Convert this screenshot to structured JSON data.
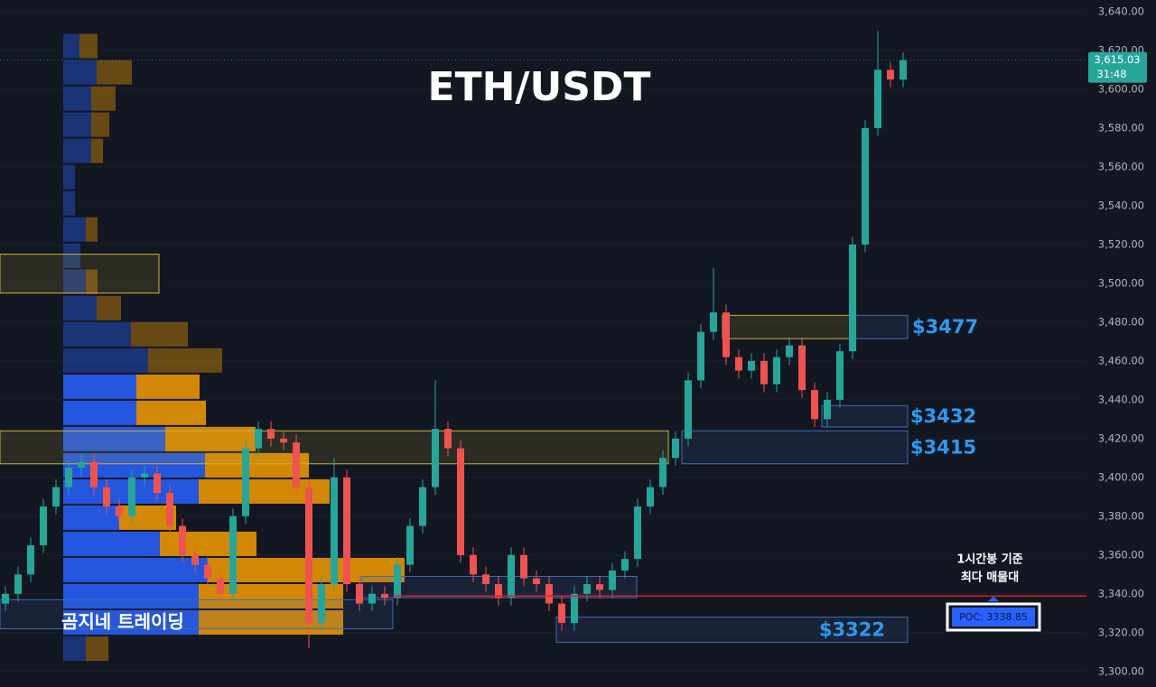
{
  "chart_data": {
    "type": "candlestick",
    "title": "ETH/USDT",
    "watermark": "곰지네 트레이딩",
    "open": [
      3335,
      3340,
      3350,
      3365,
      3385,
      3395,
      3405,
      3408,
      3395,
      3385,
      3380,
      3400,
      3402,
      3392,
      3375,
      3360,
      3355,
      3348,
      3340,
      3380,
      3415,
      3425,
      3420,
      3418,
      3395,
      3325,
      3345,
      3400,
      3345,
      3335,
      3340,
      3338,
      3355,
      3375,
      3395,
      3425,
      3415,
      3360,
      3350,
      3345,
      3338,
      3360,
      3348,
      3345,
      3335,
      3325,
      3340,
      3345,
      3342,
      3352,
      3358,
      3385,
      3395,
      3410,
      3420,
      3450,
      3475,
      3485,
      3462,
      3455,
      3460,
      3448,
      3462,
      3468,
      3445,
      3430,
      3440,
      3465,
      3520,
      3580,
      3610,
      3605
    ],
    "high": [
      3344,
      3354,
      3369,
      3389,
      3399,
      3409,
      3412,
      3412,
      3399,
      3389,
      3404,
      3406,
      3406,
      3396,
      3379,
      3364,
      3359,
      3352,
      3384,
      3419,
      3429,
      3429,
      3424,
      3422,
      3399,
      3349,
      3410,
      3404,
      3349,
      3344,
      3344,
      3359,
      3379,
      3399,
      3450,
      3429,
      3419,
      3364,
      3354,
      3349,
      3364,
      3364,
      3352,
      3349,
      3339,
      3344,
      3349,
      3349,
      3356,
      3362,
      3389,
      3399,
      3414,
      3424,
      3454,
      3479,
      3508,
      3489,
      3466,
      3464,
      3464,
      3466,
      3472,
      3472,
      3449,
      3444,
      3469,
      3524,
      3584,
      3630,
      3614,
      3619
    ],
    "low": [
      3331,
      3336,
      3346,
      3361,
      3381,
      3391,
      3401,
      3391,
      3381,
      3376,
      3376,
      3396,
      3388,
      3371,
      3356,
      3351,
      3344,
      3336,
      3336,
      3376,
      3411,
      3416,
      3414,
      3391,
      3312,
      3321,
      3341,
      3341,
      3331,
      3331,
      3334,
      3334,
      3351,
      3371,
      3391,
      3411,
      3356,
      3346,
      3341,
      3334,
      3334,
      3344,
      3341,
      3331,
      3321,
      3321,
      3336,
      3338,
      3338,
      3348,
      3354,
      3381,
      3391,
      3406,
      3416,
      3446,
      3471,
      3458,
      3451,
      3451,
      3444,
      3444,
      3458,
      3441,
      3426,
      3426,
      3436,
      3461,
      3516,
      3576,
      3601,
      3601
    ],
    "close": [
      3340,
      3350,
      3365,
      3385,
      3395,
      3405,
      3408,
      3395,
      3385,
      3380,
      3400,
      3402,
      3392,
      3375,
      3360,
      3355,
      3348,
      3340,
      3380,
      3415,
      3425,
      3420,
      3418,
      3395,
      3325,
      3345,
      3400,
      3345,
      3335,
      3340,
      3338,
      3355,
      3375,
      3395,
      3425,
      3415,
      3360,
      3350,
      3345,
      3338,
      3360,
      3348,
      3345,
      3335,
      3325,
      3340,
      3345,
      3342,
      3352,
      3358,
      3385,
      3395,
      3410,
      3420,
      3450,
      3475,
      3485,
      3462,
      3455,
      3460,
      3448,
      3462,
      3468,
      3445,
      3430,
      3440,
      3465,
      3520,
      3580,
      3610,
      3605,
      3615.03
    ],
    "up_color": "#26a69a",
    "down_color": "#ef5350",
    "ylim": [
      3292,
      3646
    ],
    "yticks": [
      {
        "value": 3300,
        "label": "3,300.00"
      },
      {
        "value": 3320,
        "label": "3,320.00"
      },
      {
        "value": 3340,
        "label": "3,340.00"
      },
      {
        "value": 3360,
        "label": "3,360.00"
      },
      {
        "value": 3380,
        "label": "3,380.00"
      },
      {
        "value": 3400,
        "label": "3,400.00"
      },
      {
        "value": 3420,
        "label": "3,420.00"
      },
      {
        "value": 3440,
        "label": "3,440.00"
      },
      {
        "value": 3460,
        "label": "3,460.00"
      },
      {
        "value": 3480,
        "label": "3,480.00"
      },
      {
        "value": 3500,
        "label": "3,500.00"
      },
      {
        "value": 3520,
        "label": "3,520.00"
      },
      {
        "value": 3540,
        "label": "3,540.00"
      },
      {
        "value": 3560,
        "label": "3,560.00"
      },
      {
        "value": 3580,
        "label": "3,580.00"
      },
      {
        "value": 3600,
        "label": "3,600.00"
      },
      {
        "value": 3620,
        "label": "3,620.00"
      },
      {
        "value": 3640,
        "label": "3,640.00"
      }
    ],
    "grid": true,
    "last_price": {
      "value": 3615.03,
      "label": "3,615.03"
    },
    "countdown": "31:48",
    "poc": {
      "value": 3338.85,
      "label": "POC: 3338.85"
    },
    "annotation": [
      "1시간봉 기준",
      "최다 매물대"
    ],
    "volume_profile": {
      "bins": [
        3629,
        3615.5,
        3602,
        3588.5,
        3575,
        3561.5,
        3548,
        3534.5,
        3521,
        3507.5,
        3494,
        3480.5,
        3467,
        3453.5,
        3440,
        3426.5,
        3413,
        3399.5,
        3386,
        3372.5,
        3359,
        3345.5,
        3332,
        3318.5,
        3305
      ],
      "buy": [
        18,
        37,
        31,
        31,
        31,
        13,
        13,
        25,
        19,
        25,
        37,
        75,
        94,
        81,
        81,
        113,
        157,
        150,
        62,
        107,
        160,
        150,
        150,
        25
      ],
      "sell": [
        20,
        39,
        27,
        20,
        13,
        0,
        0,
        13,
        0,
        13,
        27,
        63,
        82,
        70,
        77,
        100,
        115,
        145,
        63,
        107,
        218,
        160,
        160,
        25
      ],
      "buy_color": "#2962ff",
      "sell_color": "#f59c00"
    },
    "zones": [
      {
        "range": [
          3495,
          3515
        ],
        "color": "#c9b33a"
      },
      {
        "range": [
          3407,
          3424
        ],
        "color": "#c9b33a"
      },
      {
        "range": [
          3471.5,
          3483.5
        ],
        "color": "#c9b33a"
      },
      {
        "range": [
          3471.5,
          3483.5
        ],
        "color": "#3d6db5",
        "label": "$3477"
      },
      {
        "range": [
          3426,
          3437
        ],
        "color": "#3d6db5",
        "label": "$3432"
      },
      {
        "range": [
          3407,
          3424
        ],
        "color": "#3d6db5",
        "label": "$3415"
      },
      {
        "range": [
          3315,
          3328
        ],
        "color": "#3d6db5",
        "label": "$3322"
      },
      {
        "range": [
          3338,
          3349
        ],
        "color": "#3d6db5"
      },
      {
        "range": [
          3322,
          3337
        ],
        "color": "#3d6db5"
      }
    ]
  }
}
